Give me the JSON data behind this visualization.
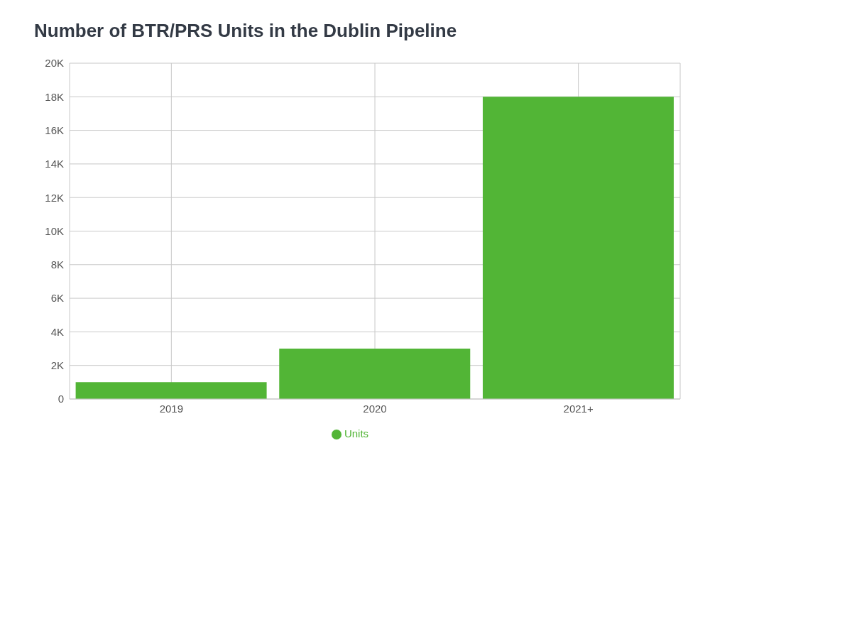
{
  "chart_data": {
    "type": "bar",
    "title": "Number of BTR/PRS Units in the Dublin Pipeline",
    "categories": [
      "2019",
      "2020",
      "2021+"
    ],
    "series": [
      {
        "name": "Units",
        "color": "#52b536",
        "values": [
          1000,
          3000,
          18000
        ]
      }
    ],
    "ylim": [
      0,
      20000
    ],
    "yticks": [
      {
        "value": 0,
        "label": "0"
      },
      {
        "value": 2000,
        "label": "2K"
      },
      {
        "value": 4000,
        "label": "4K"
      },
      {
        "value": 6000,
        "label": "6K"
      },
      {
        "value": 8000,
        "label": "8K"
      },
      {
        "value": 10000,
        "label": "10K"
      },
      {
        "value": 12000,
        "label": "12K"
      },
      {
        "value": 14000,
        "label": "14K"
      },
      {
        "value": 16000,
        "label": "16K"
      },
      {
        "value": 18000,
        "label": "18K"
      },
      {
        "value": 20000,
        "label": "20K"
      }
    ],
    "grid": true,
    "legend": "bottom"
  }
}
